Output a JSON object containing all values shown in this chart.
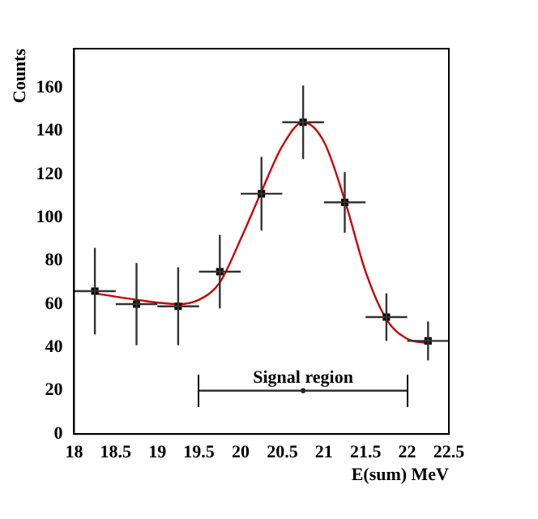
{
  "chart_data": {
    "type": "scatter",
    "xlabel": "E(sum) MeV",
    "ylabel": "Counts",
    "xlim": [
      18,
      22.5
    ],
    "xticks": [
      18,
      18.5,
      19,
      19.5,
      20,
      20.5,
      21,
      21.5,
      22,
      22.5
    ],
    "ylim": [
      0,
      178
    ],
    "yticks": [
      0,
      20,
      40,
      60,
      80,
      100,
      120,
      140,
      160
    ],
    "grid": false,
    "legend": false,
    "series": [
      {
        "type": "scatter",
        "color": "#000000",
        "marker": "square",
        "x": [
          18.25,
          18.75,
          19.25,
          19.75,
          20.25,
          20.75,
          21.25,
          21.75,
          22.25
        ],
        "values": [
          66,
          60,
          59,
          75,
          111,
          144,
          107,
          54,
          43
        ],
        "errors": [
          20,
          19,
          18,
          17,
          17,
          17,
          14,
          11,
          9
        ],
        "xerrors": [
          0.25,
          0.25,
          0.25,
          0.25,
          0.25,
          0.25,
          0.25,
          0.25,
          0.25
        ]
      },
      {
        "type": "scatter",
        "color": "#000000",
        "marker": "circle",
        "x": [
          20.75
        ],
        "values": [
          20
        ],
        "xerrors": [
          [
            19.5,
            22
          ]
        ]
      },
      {
        "type": "line",
        "color": "#cc0000",
        "marker": "none",
        "line_style": "solid",
        "x": [
          18.25,
          18.75,
          19.25,
          19.5,
          19.75,
          20,
          20.25,
          20.5,
          20.75,
          21,
          21.25,
          21.5,
          21.75,
          22,
          22.25
        ],
        "values": [
          65,
          62,
          60,
          62,
          70,
          90,
          112,
          133,
          144,
          135,
          108,
          75,
          53,
          44,
          42
        ]
      }
    ],
    "annotations": [
      {
        "text": "Signal region",
        "x": 20.75,
        "y": 20
      }
    ]
  }
}
